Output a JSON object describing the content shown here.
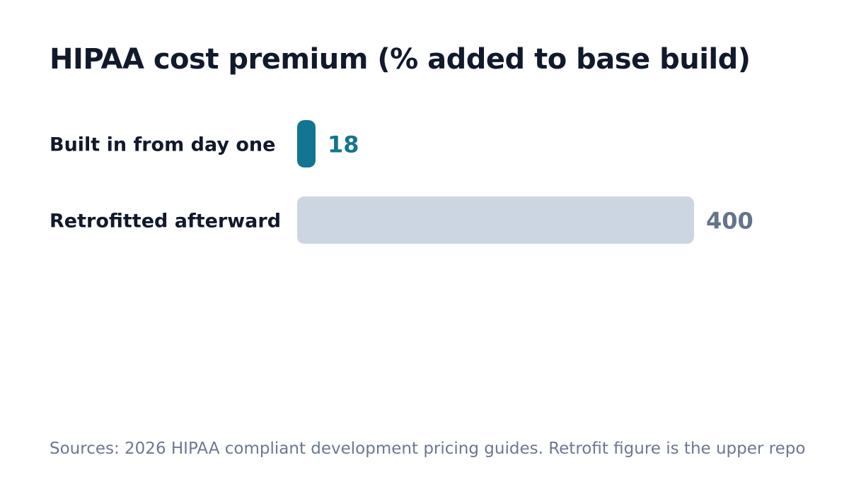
{
  "chart_data": {
    "type": "bar",
    "orientation": "horizontal",
    "title": "HIPAA cost premium (% added to base build)",
    "categories": [
      "Built in from day one",
      "Retrofitted afterward"
    ],
    "values": [
      18,
      400
    ],
    "value_labels": [
      "18",
      "400"
    ],
    "bar_colors": [
      "#127591",
      "#ccd6e2"
    ],
    "label_colors": [
      "#127591",
      "#64748b"
    ],
    "xlim": [
      0,
      400
    ],
    "grid": false,
    "legend": "none",
    "source": "Sources: 2026 HIPAA compliant development pricing guides. Retrofit figure is the upper repo"
  }
}
